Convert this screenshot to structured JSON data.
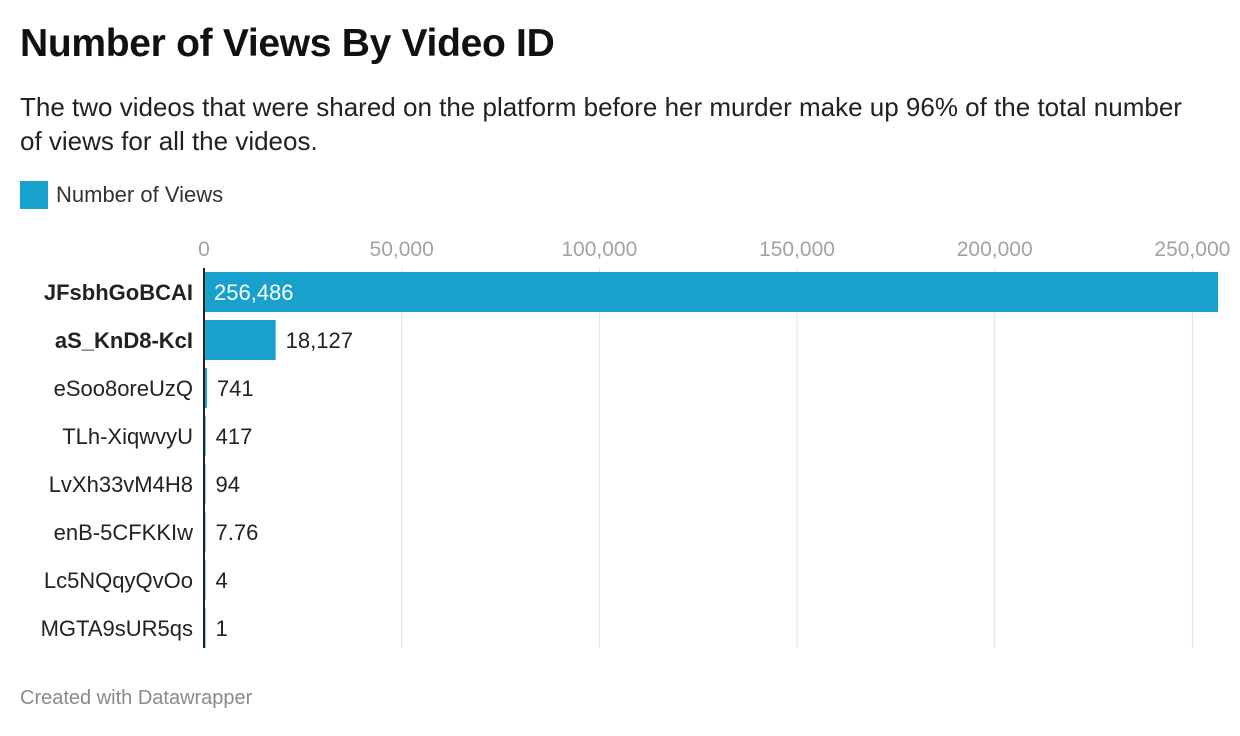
{
  "header": {
    "title": "Number of Views By Video ID",
    "subtitle": "The two videos that were shared on the platform before her murder make up 96% of the total number of views for all the videos."
  },
  "legend": {
    "items": [
      {
        "label": "Number of Views",
        "color": "#18a1cd"
      }
    ]
  },
  "footer": {
    "credit": "Created with Datawrapper"
  },
  "chart_data": {
    "type": "bar",
    "orientation": "horizontal",
    "series": [
      {
        "name": "Number of Views",
        "color": "#18a1cd"
      }
    ],
    "categories": [
      "JFsbhGoBCAI",
      "aS_KnD8-KcI",
      "eSoo8oreUzQ",
      "TLh-XiqwvyU",
      "LvXh33vM4H8",
      "enB-5CFKKIw",
      "Lc5NQqyQvOo",
      "MGTA9sUR5qs"
    ],
    "values": [
      256486,
      18127,
      741,
      417,
      94,
      7.76,
      4,
      1
    ],
    "value_labels": [
      "256,486",
      "18,127",
      "741",
      "417",
      "94",
      "7.76",
      "4",
      "1"
    ],
    "bold_categories": [
      "JFsbhGoBCAI",
      "aS_KnD8-KcI"
    ],
    "x_ticks": [
      0,
      50000,
      100000,
      150000,
      200000,
      250000
    ],
    "x_tick_labels": [
      "0",
      "50,000",
      "100,000",
      "150,000",
      "200,000",
      "250,000"
    ],
    "xlim": [
      0,
      256486
    ],
    "grid": true,
    "axis_position": "top",
    "legend_position": "top-left"
  }
}
